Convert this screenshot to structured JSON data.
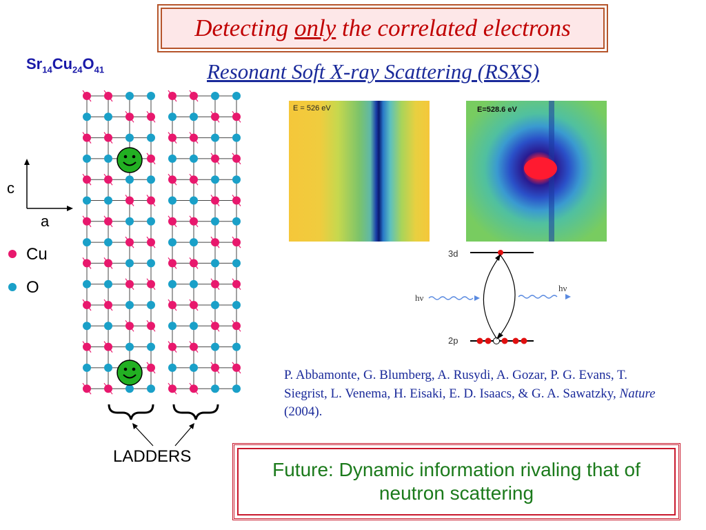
{
  "title": {
    "before": "Detecting ",
    "emphasis": "only",
    "after": " the correlated electrons"
  },
  "formula": {
    "parts": [
      "Sr",
      "14",
      "Cu",
      "24",
      "O",
      "41"
    ]
  },
  "subtitle": "Resonant Soft X-ray Scattering (RSXS)",
  "axes": {
    "vertical": "c",
    "horizontal": "a"
  },
  "legend": [
    {
      "label": "Cu",
      "color": "#e8186d"
    },
    {
      "label": "O",
      "color": "#1aa0c8"
    }
  ],
  "images": {
    "left_label": "E = 526 eV",
    "right_label": "E=528.6 eV"
  },
  "energy_diagram": {
    "upper_level": "3d",
    "lower_level": "2p",
    "photon_in": "hν",
    "photon_out": "hν"
  },
  "citation": {
    "authors": "P. Abbamonte, G. Blumberg, A. Rusydi, A. Gozar, P. G. Evans, T. Siegrist, L. Venema, H. Eisaki, E. D. Isaacs, & G. A. Sawatzky,",
    "journal": "Nature",
    "year": "(2004)."
  },
  "future": "Future: Dynamic information rivaling that of neutron scattering",
  "ladders_label": "LADDERS",
  "colors": {
    "cu": "#e8186d",
    "o": "#1aa0c8",
    "smiley": "#22b022"
  }
}
